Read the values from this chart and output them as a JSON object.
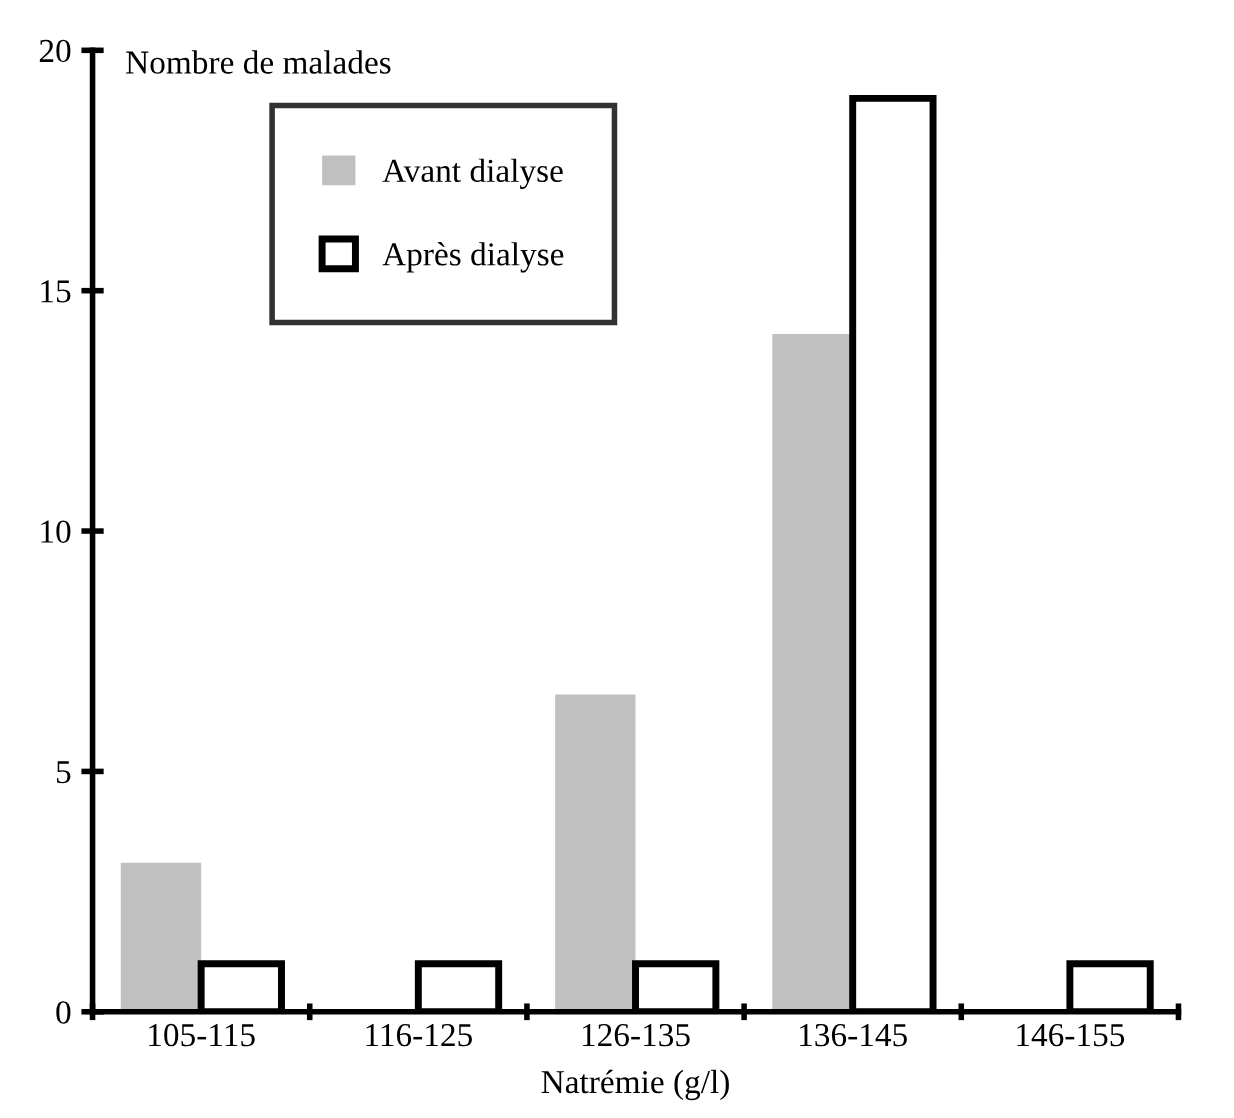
{
  "chart_data": {
    "type": "bar",
    "ylabel": "Nombre de malades",
    "xlabel": "Natrémie (g/l)",
    "categories": [
      "105-115",
      "116-125",
      "126-135",
      "136-145",
      "146-155"
    ],
    "series": [
      {
        "name": "Avant dialyse",
        "color": "#c0c0c0",
        "values": [
          3.1,
          0,
          6.6,
          14.1,
          0
        ]
      },
      {
        "name": "Après dialyse",
        "color": "#ffffff",
        "values": [
          1,
          1,
          1,
          19,
          1
        ]
      }
    ],
    "ylim": [
      0,
      20
    ],
    "yticks": [
      0,
      5,
      10,
      15,
      20
    ],
    "grid": false,
    "legend": "top left"
  }
}
